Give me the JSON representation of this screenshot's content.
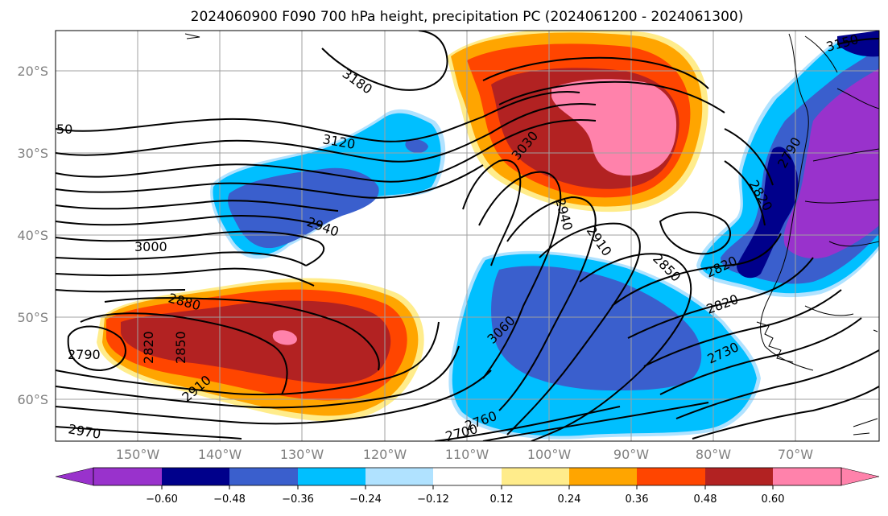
{
  "title": "2024060900 F090 700 hPa height, precipitation PC (2024061200 - 2024061300)",
  "lat_labels": [
    "20°S",
    "30°S",
    "40°S",
    "50°S",
    "60°S"
  ],
  "lon_labels": [
    "150°W",
    "140°W",
    "130°W",
    "120°W",
    "110°W",
    "100°W",
    "90°W",
    "80°W",
    "70°W"
  ],
  "contour_labels": [
    "3180",
    "3120",
    "50",
    "3000",
    "2940",
    "3030",
    "2940",
    "2910",
    "2850",
    "2820",
    "2820",
    "2880",
    "2820",
    "2850",
    "2790",
    "2910",
    "3060",
    "2730",
    "2760",
    "2700",
    "2970",
    "3150",
    "2820",
    "2790"
  ],
  "colorbar": {
    "ticks": [
      "−0.60",
      "−0.48",
      "−0.36",
      "−0.24",
      "−0.12",
      "0.12",
      "0.24",
      "0.36",
      "0.48",
      "0.60"
    ],
    "colors": [
      "#9932cc",
      "#00008b",
      "#3a5fcd",
      "#00bfff",
      "#b0e2ff",
      "#ffffff",
      "#ffec8b",
      "#ffa500",
      "#ff4500",
      "#b22222",
      "#ff82ab"
    ]
  }
}
